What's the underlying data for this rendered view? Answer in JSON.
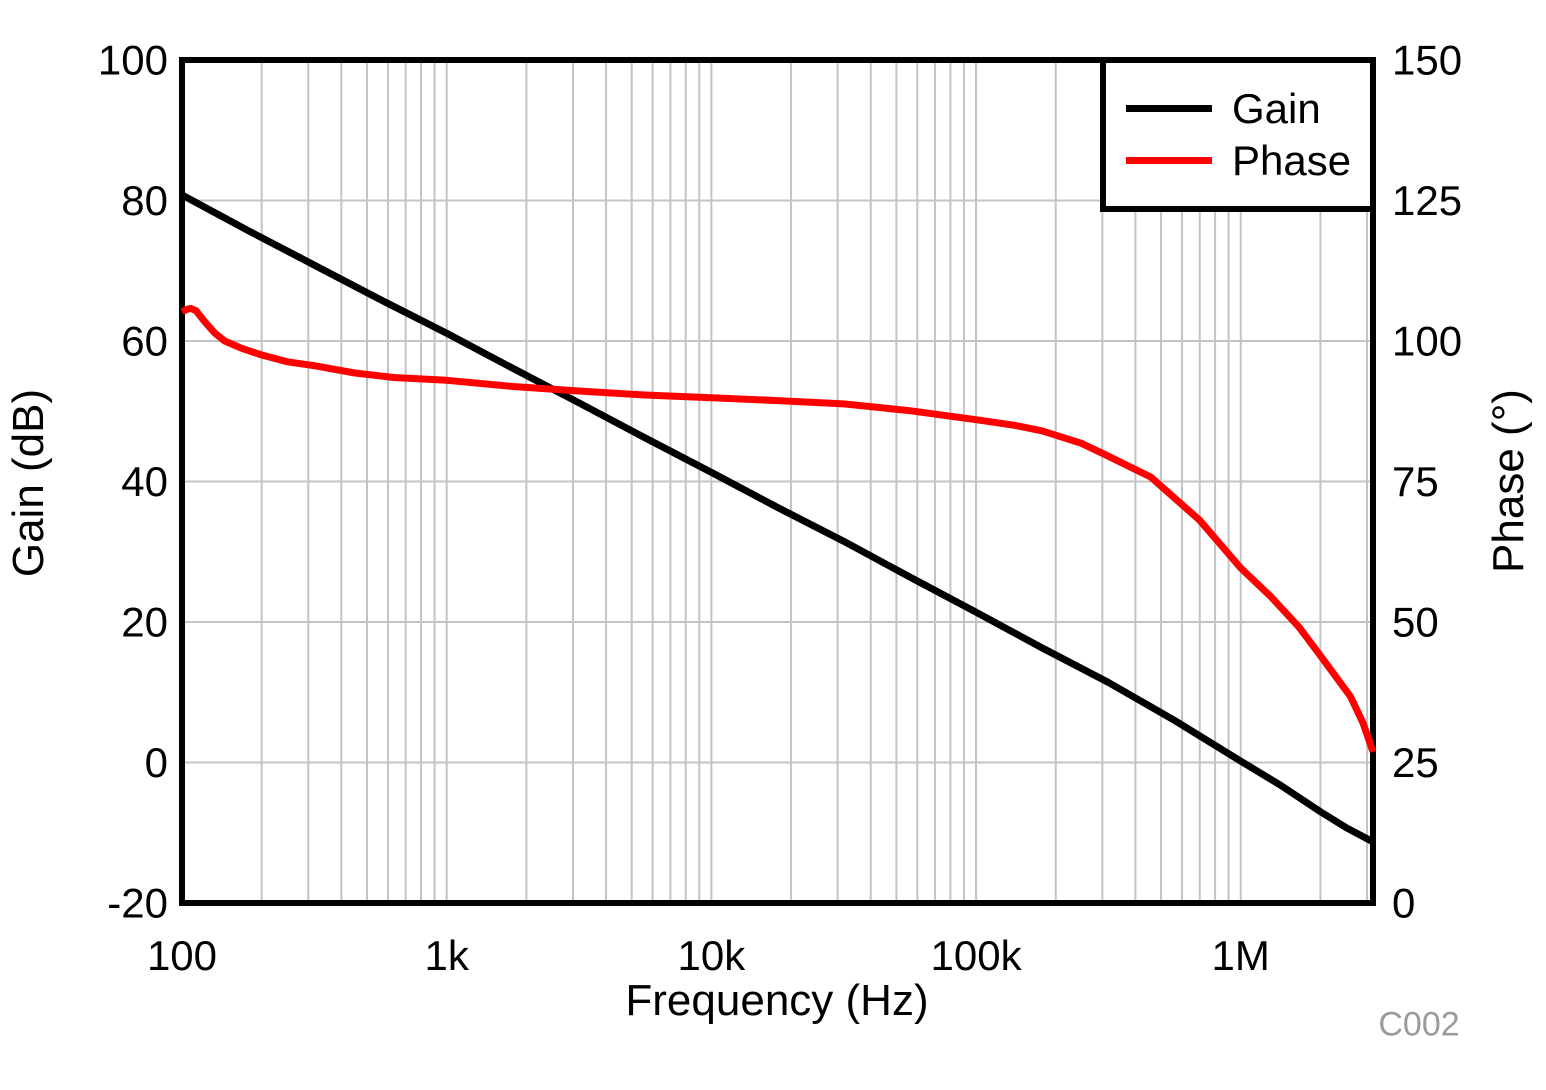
{
  "figure": {
    "watermark": "C002"
  },
  "style_colors": {
    "background": "#ffffff",
    "frame": "#000000",
    "grid": "#c3c3c3",
    "watermark": "#9b9b9b",
    "gain": "#000000",
    "phase": "#ff0000"
  },
  "chart_data": {
    "type": "line",
    "title": "",
    "grid": true,
    "x_axis": {
      "label": "Frequency (Hz)",
      "scale": "log",
      "min": 100,
      "max": 3160000,
      "ticks": [
        {
          "value": 100,
          "label": "100"
        },
        {
          "value": 1000,
          "label": "1k"
        },
        {
          "value": 10000,
          "label": "10k"
        },
        {
          "value": 100000,
          "label": "100k"
        },
        {
          "value": 1000000,
          "label": "1M"
        }
      ]
    },
    "y_axis_left": {
      "label": "Gain (dB)",
      "min": -20,
      "max": 100,
      "ticks": [
        100,
        80,
        60,
        40,
        20,
        0,
        -20
      ],
      "grid_values": [
        80,
        60,
        40,
        20,
        0
      ]
    },
    "y_axis_right": {
      "label": "Phase (°)",
      "min": 0,
      "max": 150,
      "ticks": [
        150,
        125,
        100,
        75,
        50,
        25,
        0
      ]
    },
    "legend": {
      "position": "top-right",
      "entries": [
        {
          "label": "Gain",
          "color": "#000000"
        },
        {
          "label": "Phase",
          "color": "#ff0000"
        }
      ]
    },
    "series": [
      {
        "name": "Gain",
        "axis": "left",
        "color": "#000000",
        "points": [
          [
            100,
            80.8
          ],
          [
            178,
            75.7
          ],
          [
            316,
            70.8
          ],
          [
            562,
            65.9
          ],
          [
            1000,
            61.1
          ],
          [
            1780,
            56.1
          ],
          [
            3160,
            51.2
          ],
          [
            5620,
            46.2
          ],
          [
            10000,
            41.3
          ],
          [
            17800,
            36.3
          ],
          [
            31600,
            31.5
          ],
          [
            56200,
            26.4
          ],
          [
            100000,
            21.4
          ],
          [
            178000,
            16.3
          ],
          [
            316000,
            11.4
          ],
          [
            562000,
            6.0
          ],
          [
            1000000,
            0.2
          ],
          [
            1410000,
            -3.2
          ],
          [
            2000000,
            -7.0
          ],
          [
            2510000,
            -9.3
          ],
          [
            3160000,
            -11.3
          ]
        ]
      },
      {
        "name": "Phase",
        "axis": "right",
        "color": "#ff0000",
        "points": [
          [
            100,
            105.2
          ],
          [
            104,
            105.6
          ],
          [
            108,
            105.8
          ],
          [
            113,
            105.4
          ],
          [
            122,
            103.4
          ],
          [
            133,
            101.4
          ],
          [
            145,
            100.0
          ],
          [
            168,
            98.7
          ],
          [
            200,
            97.5
          ],
          [
            250,
            96.3
          ],
          [
            316,
            95.6
          ],
          [
            450,
            94.3
          ],
          [
            630,
            93.5
          ],
          [
            1000,
            93.0
          ],
          [
            1780,
            91.9
          ],
          [
            3160,
            91.1
          ],
          [
            5620,
            90.4
          ],
          [
            10000,
            89.9
          ],
          [
            17800,
            89.4
          ],
          [
            31600,
            88.8
          ],
          [
            56200,
            87.6
          ],
          [
            100000,
            86.0
          ],
          [
            140000,
            85.0
          ],
          [
            178000,
            84.0
          ],
          [
            250000,
            81.8
          ],
          [
            316000,
            79.5
          ],
          [
            457000,
            75.8
          ],
          [
            700000,
            68.1
          ],
          [
            1000000,
            59.6
          ],
          [
            1300000,
            54.5
          ],
          [
            1660000,
            49.1
          ],
          [
            2000000,
            44.0
          ],
          [
            2600000,
            36.7
          ],
          [
            2900000,
            32.0
          ],
          [
            3160000,
            26.9
          ]
        ]
      }
    ]
  }
}
